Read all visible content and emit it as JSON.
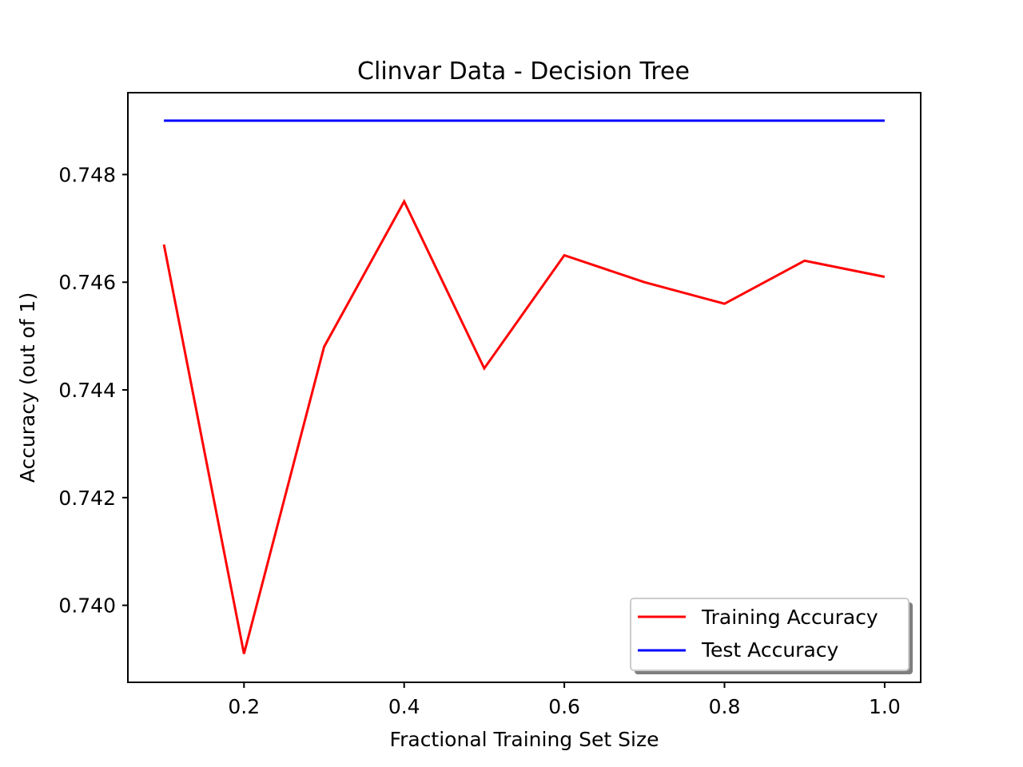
{
  "chart_data": {
    "type": "line",
    "title": "Clinvar Data - Decision Tree",
    "xlabel": "Fractional Training Set Size",
    "ylabel": "Accuracy (out of 1)",
    "xlim": [
      0.055,
      1.045
    ],
    "ylim": [
      0.73857,
      0.74952
    ],
    "xticks": [
      0.2,
      0.4,
      0.6,
      0.8,
      1.0
    ],
    "xtick_labels": [
      "0.2",
      "0.4",
      "0.6",
      "0.8",
      "1.0"
    ],
    "yticks": [
      0.74,
      0.742,
      0.744,
      0.746,
      0.748
    ],
    "ytick_labels": [
      "0.740",
      "0.742",
      "0.744",
      "0.746",
      "0.748"
    ],
    "x": [
      0.1,
      0.2,
      0.3,
      0.4,
      0.5,
      0.6,
      0.7,
      0.8,
      0.9,
      1.0
    ],
    "series": [
      {
        "name": "Training Accuracy",
        "color": "#ff0000",
        "values": [
          0.7467,
          0.7391,
          0.7448,
          0.7475,
          0.7444,
          0.7465,
          0.746,
          0.7456,
          0.7464,
          0.7461
        ]
      },
      {
        "name": "Test Accuracy",
        "color": "#0000ff",
        "values": [
          0.749,
          0.749,
          0.749,
          0.749,
          0.749,
          0.749,
          0.749,
          0.749,
          0.749,
          0.749
        ]
      }
    ],
    "grid": false,
    "legend_position": "lower-right"
  }
}
